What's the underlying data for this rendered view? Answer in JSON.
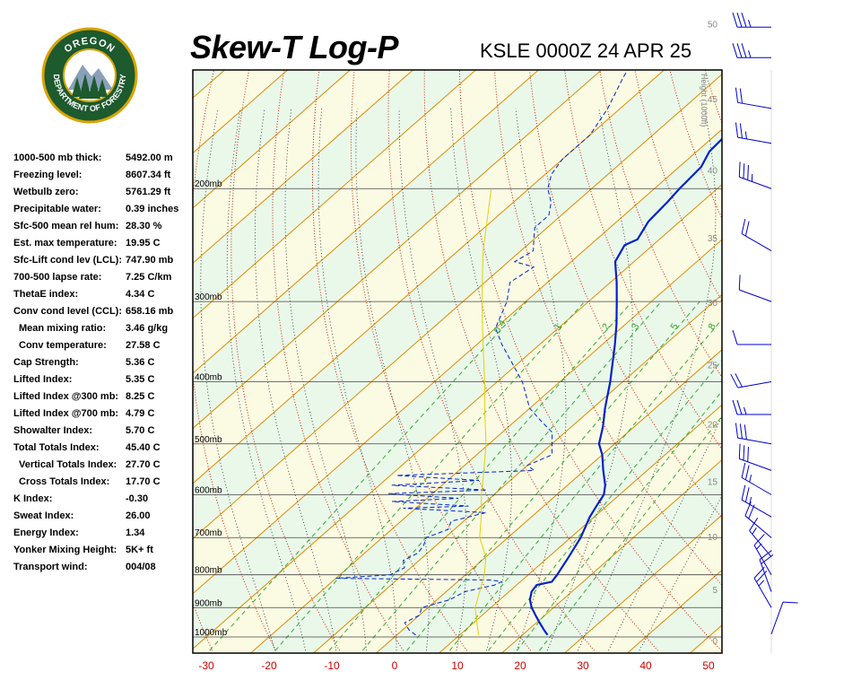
{
  "header": {
    "title": "Skew-T Log-P",
    "subtitle": "KSLE 0000Z 24 APR 25"
  },
  "logo": {
    "top_text": "OREGON",
    "bottom_text": "DEPARTMENT OF FORESTRY",
    "colors": {
      "ring": "#1d5a2e",
      "ring_border": "#d9a400",
      "text": "#ffffff",
      "inner": "#ffffff",
      "trees": "#1d5a2e",
      "mountain": "#8aa0b8"
    }
  },
  "stats": [
    {
      "label": "1000-500 mb thick:",
      "value": "5492.00 m",
      "indent": false
    },
    {
      "label": "Freezing level:",
      "value": "8607.34 ft",
      "indent": false
    },
    {
      "label": "Wetbulb zero:",
      "value": "5761.29 ft",
      "indent": false
    },
    {
      "label": "Precipitable water:",
      "value": "0.39 inches",
      "indent": false
    },
    {
      "label": "Sfc-500 mean rel hum:",
      "value": "28.30 %",
      "indent": false
    },
    {
      "label": "Est. max temperature:",
      "value": "19.95 C",
      "indent": false
    },
    {
      "label": "Sfc-Lift cond lev (LCL):",
      "value": "747.90 mb",
      "indent": false
    },
    {
      "label": "700-500 lapse rate:",
      "value": "7.25 C/km",
      "indent": false
    },
    {
      "label": "ThetaE index:",
      "value": "4.34 C",
      "indent": false
    },
    {
      "label": "Conv cond level (CCL):",
      "value": "658.16 mb",
      "indent": false
    },
    {
      "label": "Mean mixing ratio:",
      "value": "3.46 g/kg",
      "indent": true
    },
    {
      "label": "Conv temperature:",
      "value": "27.58 C",
      "indent": true
    },
    {
      "label": "Cap Strength:",
      "value": "5.36 C",
      "indent": false
    },
    {
      "label": "Lifted Index:",
      "value": "5.35 C",
      "indent": false
    },
    {
      "label": "Lifted Index @300 mb:",
      "value": "8.25 C",
      "indent": false
    },
    {
      "label": "Lifted Index @700 mb:",
      "value": "4.79 C",
      "indent": false
    },
    {
      "label": "Showalter Index:",
      "value": "5.70 C",
      "indent": false
    },
    {
      "label": "Total Totals Index:",
      "value": "45.40 C",
      "indent": false
    },
    {
      "label": "Vertical Totals Index:",
      "value": "27.70 C",
      "indent": true
    },
    {
      "label": "Cross Totals Index:",
      "value": "17.70 C",
      "indent": true
    },
    {
      "label": "K Index:",
      "value": "-0.30",
      "indent": false
    },
    {
      "label": "Sweat Index:",
      "value": "26.00",
      "indent": false
    },
    {
      "label": "Energy Index:",
      "value": "1.34",
      "indent": false
    },
    {
      "label": "Yonker Mixing Height:",
      "value": "5K+ ft",
      "indent": false
    },
    {
      "label": "Transport wind:",
      "value": "004/08",
      "indent": false
    }
  ],
  "chart_data": {
    "type": "line",
    "title": "Skew-T Log-P",
    "subtitle": "KSLE 0000Z 24 APR 25",
    "x_axis": {
      "unit": "C",
      "ticks": [
        -30,
        -20,
        -10,
        0,
        10,
        20,
        30,
        40,
        50
      ],
      "range": [
        -33,
        52
      ]
    },
    "pressure_axis": {
      "unit": "mb",
      "log_scale": true,
      "labels": [
        "200mb",
        "300mb",
        "400mb",
        "500mb",
        "600mb",
        "700mb",
        "800mb",
        "900mb",
        "1000mb"
      ],
      "levels": [
        200,
        300,
        400,
        500,
        600,
        700,
        800,
        900,
        1000
      ]
    },
    "height_axis": {
      "label": "Height (1000ft)",
      "ticks": [
        0,
        5,
        10,
        15,
        20,
        25,
        30,
        35,
        40,
        45,
        50
      ]
    },
    "mixing_ratio_labels": [
      "0.4",
      "1",
      "2",
      "3",
      "5",
      "8"
    ],
    "colors": {
      "temperature": "#0022cc",
      "dewpoint": "#0022cc",
      "parcel": "#e6d000",
      "isotherm": "#e08a00",
      "dry_adiabat": "#cc2200",
      "moist_adiabat": "#222222",
      "mixing_ratio": "#33aa33",
      "band_green": "#eaf8ea",
      "band_yellow": "#fbfbe4",
      "wind": "#0000cc",
      "axis_tick": "#cc0000"
    },
    "series": [
      {
        "name": "Temperature",
        "style": "solid",
        "points": [
          [
            993,
            24.0
          ],
          [
            975,
            22.5
          ],
          [
            950,
            20.5
          ],
          [
            925,
            18.5
          ],
          [
            900,
            16.5
          ],
          [
            875,
            14.8
          ],
          [
            850,
            13.6
          ],
          [
            830,
            13.2
          ],
          [
            820,
            15.0
          ],
          [
            800,
            14.6
          ],
          [
            750,
            13.2
          ],
          [
            700,
            11.6
          ],
          [
            650,
            9.3
          ],
          [
            620,
            8.2
          ],
          [
            600,
            7.5
          ],
          [
            580,
            6.0
          ],
          [
            550,
            3.0
          ],
          [
            520,
            0.0
          ],
          [
            500,
            -2.5
          ],
          [
            470,
            -5.0
          ],
          [
            440,
            -8.0
          ],
          [
            400,
            -12.0
          ],
          [
            350,
            -18.0
          ],
          [
            325,
            -21.5
          ],
          [
            300,
            -25.5
          ],
          [
            280,
            -29.0
          ],
          [
            260,
            -33.0
          ],
          [
            245,
            -34.5
          ],
          [
            240,
            -33.5
          ],
          [
            225,
            -35.0
          ],
          [
            210,
            -35.5
          ],
          [
            200,
            -36.0
          ],
          [
            185,
            -36.5
          ],
          [
            175,
            -38.0
          ],
          [
            160,
            -38.5
          ],
          [
            145,
            -40.0
          ],
          [
            130,
            -41.5
          ],
          [
            118,
            -43.5
          ],
          [
            112,
            -44.0
          ]
        ]
      },
      {
        "name": "Dewpoint",
        "style": "dashed",
        "points": [
          [
            993,
            3.0
          ],
          [
            975,
            1.0
          ],
          [
            950,
            -1.0
          ],
          [
            925,
            0.0
          ],
          [
            900,
            -1.0
          ],
          [
            875,
            2.0
          ],
          [
            850,
            3.0
          ],
          [
            830,
            6.5
          ],
          [
            820,
            7.0
          ],
          [
            815,
            5.0
          ],
          [
            810,
            -20.0
          ],
          [
            800,
            -12.0
          ],
          [
            780,
            -11.0
          ],
          [
            760,
            -12.5
          ],
          [
            740,
            -11.5
          ],
          [
            720,
            -12.0
          ],
          [
            700,
            -13.0
          ],
          [
            680,
            -11.0
          ],
          [
            660,
            -12.0
          ],
          [
            640,
            -8.0
          ],
          [
            630,
            -22.0
          ],
          [
            625,
            -12.0
          ],
          [
            615,
            -25.0
          ],
          [
            608,
            -15.0
          ],
          [
            598,
            -27.0
          ],
          [
            590,
            -12.0
          ],
          [
            580,
            -28.0
          ],
          [
            570,
            -15.0
          ],
          [
            560,
            -29.0
          ],
          [
            550,
            -8.0
          ],
          [
            540,
            -10.0
          ],
          [
            520,
            -8.0
          ],
          [
            500,
            -10.0
          ],
          [
            480,
            -12.0
          ],
          [
            460,
            -16.0
          ],
          [
            440,
            -20.0
          ],
          [
            400,
            -26.0
          ],
          [
            350,
            -36.0
          ],
          [
            330,
            -40.0
          ],
          [
            300,
            -43.0
          ],
          [
            280,
            -46.0
          ],
          [
            265,
            -45.0
          ],
          [
            260,
            -49.0
          ],
          [
            250,
            -48.0
          ],
          [
            240,
            -50.0
          ],
          [
            230,
            -52.0
          ],
          [
            220,
            -52.0
          ],
          [
            210,
            -54.0
          ],
          [
            200,
            -57.0
          ],
          [
            190,
            -59.0
          ],
          [
            180,
            -60.0
          ],
          [
            165,
            -60.0
          ],
          [
            150,
            -62.0
          ],
          [
            135,
            -65.0
          ],
          [
            120,
            -68.0
          ],
          [
            112,
            -70.0
          ]
        ]
      },
      {
        "name": "Parcel",
        "style": "solid",
        "points": [
          [
            993,
            13.0
          ],
          [
            900,
            7.5
          ],
          [
            800,
            3.0
          ],
          [
            750,
            0.0
          ],
          [
            700,
            -4.5
          ],
          [
            650,
            -8.0
          ],
          [
            600,
            -12.0
          ],
          [
            550,
            -16.0
          ],
          [
            500,
            -20.5
          ],
          [
            450,
            -26.0
          ],
          [
            400,
            -32.0
          ],
          [
            350,
            -39.0
          ],
          [
            300,
            -47.0
          ],
          [
            250,
            -56.0
          ],
          [
            200,
            -66.0
          ]
        ]
      }
    ],
    "wind_barbs": [
      {
        "p": 990,
        "dir": 20,
        "kt": 10
      },
      {
        "p": 900,
        "dir": 330,
        "kt": 25
      },
      {
        "p": 850,
        "dir": 340,
        "kt": 20
      },
      {
        "p": 800,
        "dir": 330,
        "kt": 15
      },
      {
        "p": 750,
        "dir": 320,
        "kt": 15
      },
      {
        "p": 700,
        "dir": 310,
        "kt": 20
      },
      {
        "p": 650,
        "dir": 300,
        "kt": 25
      },
      {
        "p": 600,
        "dir": 300,
        "kt": 25
      },
      {
        "p": 550,
        "dir": 290,
        "kt": 30
      },
      {
        "p": 500,
        "dir": 280,
        "kt": 30
      },
      {
        "p": 450,
        "dir": 270,
        "kt": 25
      },
      {
        "p": 400,
        "dir": 260,
        "kt": 20
      },
      {
        "p": 350,
        "dir": 270,
        "kt": 10
      },
      {
        "p": 300,
        "dir": 290,
        "kt": 10
      },
      {
        "p": 250,
        "dir": 300,
        "kt": 20
      },
      {
        "p": 200,
        "dir": 290,
        "kt": 35
      },
      {
        "p": 170,
        "dir": 280,
        "kt": 25
      },
      {
        "p": 150,
        "dir": 280,
        "kt": 20
      },
      {
        "p": 125,
        "dir": 270,
        "kt": 35
      },
      {
        "p": 112,
        "dir": 270,
        "kt": 35
      }
    ]
  }
}
